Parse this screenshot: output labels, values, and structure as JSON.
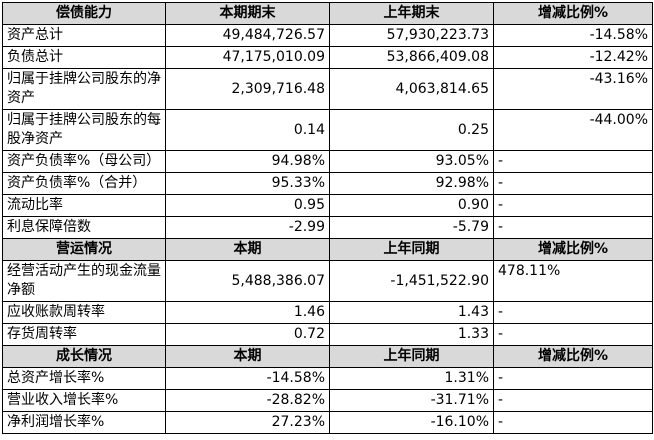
{
  "sections": [
    {
      "header": [
        "偿债能力",
        "本期期末",
        "上年期末",
        "增减比例%"
      ],
      "rows": [
        [
          "资产总计",
          "49,484,726.57",
          "57,930,223.73",
          "-14.58%"
        ],
        [
          "负债总计",
          "47,175,010.09",
          "53,866,409.08",
          "-12.42%"
        ],
        [
          "归属于挂牌公司股东的净资产",
          "2,309,716.48",
          "4,063,814.65",
          "-43.16%"
        ],
        [
          "归属于挂牌公司股东的每股净资产",
          "0.14",
          "0.25",
          "-44.00%"
        ],
        [
          "资产负债率%（母公司）",
          "94.98%",
          "93.05%",
          "-"
        ],
        [
          "资产负债率%（合并）",
          "95.33%",
          "92.98%",
          "-"
        ],
        [
          "流动比率",
          "0.95",
          "0.90",
          "-"
        ],
        [
          "利息保障倍数",
          "-2.99",
          "-5.79",
          "-"
        ]
      ]
    },
    {
      "header": [
        "营运情况",
        "本期",
        "上年同期",
        "增减比例%"
      ],
      "rows": [
        [
          "经营活动产生的现金流量净额",
          "5,488,386.07",
          "-1,451,522.90",
          "478.11%"
        ],
        [
          "应收账款周转率",
          "1.46",
          "1.43",
          "-"
        ],
        [
          "存货周转率",
          "0.72",
          "1.33",
          "-"
        ]
      ]
    },
    {
      "header": [
        "成长情况",
        "本期",
        "上年同期",
        "增减比例%"
      ],
      "rows": [
        [
          "总资产增长率%",
          "-14.58%",
          "1.31%",
          "-"
        ],
        [
          "营业收入增长率%",
          "-28.82%",
          "-31.71%",
          "-"
        ],
        [
          "净利润增长率%",
          "27.23%",
          "-16.10%",
          "-"
        ]
      ]
    }
  ]
}
